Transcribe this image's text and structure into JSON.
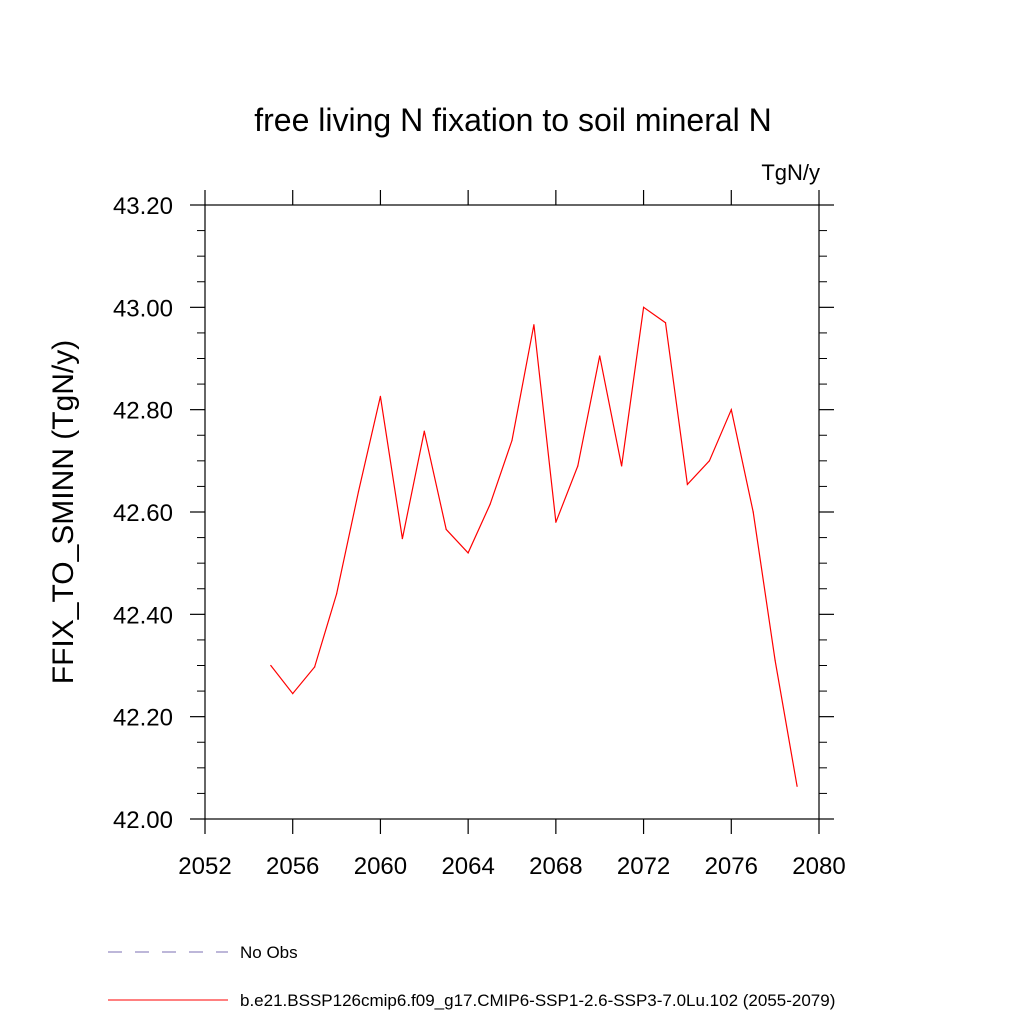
{
  "chart_data": {
    "type": "line",
    "title": "free living N fixation to soil mineral N",
    "units": "TgN/y",
    "ylabel": "FFIX_TO_SMINN  (TgN/y)",
    "xlabel": "",
    "xlim": [
      2052,
      2080
    ],
    "ylim": [
      42.0,
      43.2
    ],
    "x_ticks": [
      "2052",
      "2056",
      "2060",
      "2064",
      "2068",
      "2072",
      "2076",
      "2080"
    ],
    "y_ticks": [
      "42.00",
      "42.20",
      "42.40",
      "42.60",
      "42.80",
      "43.00",
      "43.20"
    ],
    "series": [
      {
        "name": "b.e21.BSSP126cmip6.f09_g17.CMIP6-SSP1-2.6-SSP3-7.0Lu.102 (2055-2079)",
        "color": "#ff0000",
        "x": [
          2055,
          2056,
          2057,
          2058,
          2059,
          2060,
          2061,
          2062,
          2063,
          2064,
          2065,
          2066,
          2067,
          2068,
          2069,
          2070,
          2071,
          2072,
          2073,
          2074,
          2075,
          2076,
          2077,
          2078,
          2079
        ],
        "y": [
          42.3,
          42.245,
          42.297,
          42.44,
          42.64,
          42.826,
          42.548,
          42.758,
          42.566,
          42.52,
          42.615,
          42.74,
          42.966,
          42.58,
          42.69,
          42.905,
          42.69,
          43.0,
          42.97,
          42.654,
          42.7,
          42.8,
          42.6,
          42.31,
          42.064
        ]
      }
    ],
    "legend": {
      "placement": "bottom",
      "entries": [
        {
          "label": "No Obs",
          "color": "#7b6fb3",
          "style": "dashed"
        },
        {
          "label": "b.e21.BSSP126cmip6.f09_g17.CMIP6-SSP1-2.6-SSP3-7.0Lu.102 (2055-2079)",
          "color": "#ff0000",
          "style": "solid"
        }
      ]
    },
    "grid": false
  }
}
